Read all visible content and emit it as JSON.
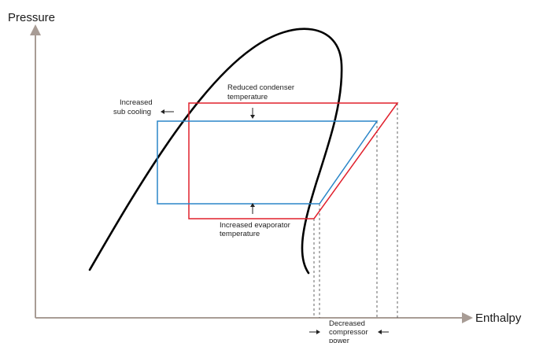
{
  "diagram": {
    "axes": {
      "y_label": "Pressure",
      "x_label": "Enthalpy"
    },
    "annotations": {
      "subcooling": [
        "Increased",
        "sub cooling"
      ],
      "condenser": [
        "Reduced condenser",
        "temperature"
      ],
      "evaporator": [
        "Increased evaporator",
        "temperature"
      ],
      "compressor": [
        "Decreased",
        "compressor",
        "power"
      ]
    },
    "colors": {
      "axis": "#a89c95",
      "dome": "#000000",
      "original_cycle": "#e0202c",
      "improved_cycle": "#2a86c8",
      "dashed_guides": "#555555",
      "arrows": "#222222"
    }
  }
}
